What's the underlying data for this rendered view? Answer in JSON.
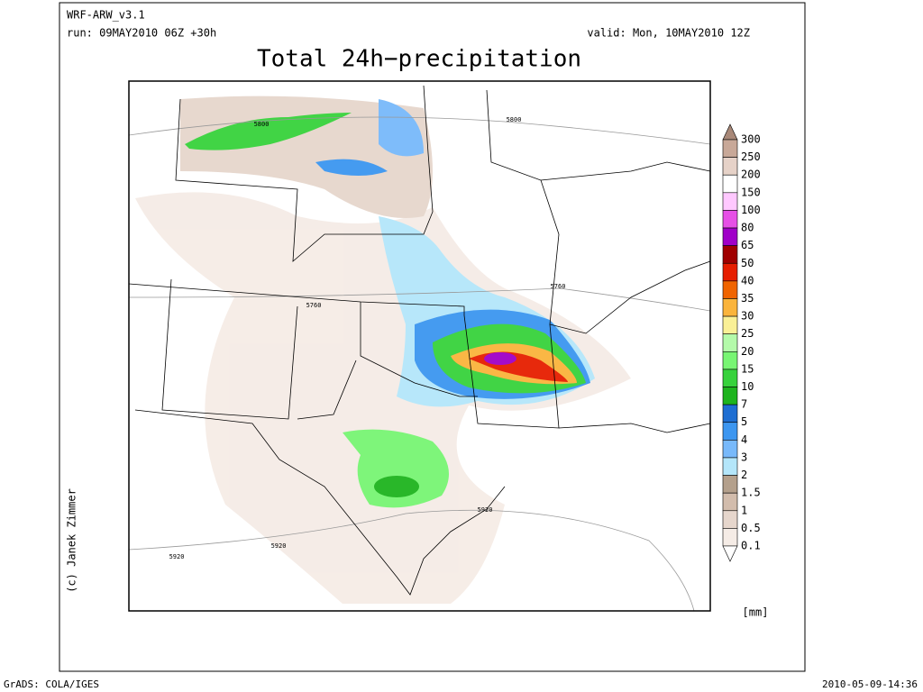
{
  "header": {
    "model": "WRF-ARW_v3.1",
    "run": "run: 09MAY2010 06Z +30h",
    "valid": "valid: Mon, 10MAY2010 12Z",
    "title": "Total 24h−precipitation"
  },
  "map": {
    "contour_labels": [
      "5800",
      "5800",
      "5760",
      "5760",
      "5920",
      "5920",
      "5920"
    ]
  },
  "legend": {
    "unit": "[mm]",
    "labels": [
      "300",
      "250",
      "200",
      "150",
      "100",
      "80",
      "65",
      "50",
      "40",
      "35",
      "30",
      "25",
      "20",
      "15",
      "10",
      "7",
      "5",
      "4",
      "3",
      "2",
      "1.5",
      "1",
      "0.5",
      "0.1"
    ],
    "colors": [
      "#a88878",
      "#c8a898",
      "#e6d2c8",
      "#ffffff",
      "#ffc8ff",
      "#e650e6",
      "#a000c8",
      "#a00000",
      "#e61e00",
      "#f06400",
      "#fab43c",
      "#faf096",
      "#b4faaa",
      "#78f573",
      "#37d23c",
      "#1eb41e",
      "#1e6ed2",
      "#3c96f0",
      "#78b9fa",
      "#b4e6fa",
      "#b4a08c",
      "#d2bcac",
      "#e6d6cc",
      "#f5ece6",
      "#ffffff"
    ]
  },
  "footer": {
    "left": "GrADS: COLA/IGES",
    "right": "2010-05-09-14:36",
    "credit": "(c) Janek Zimmer"
  }
}
